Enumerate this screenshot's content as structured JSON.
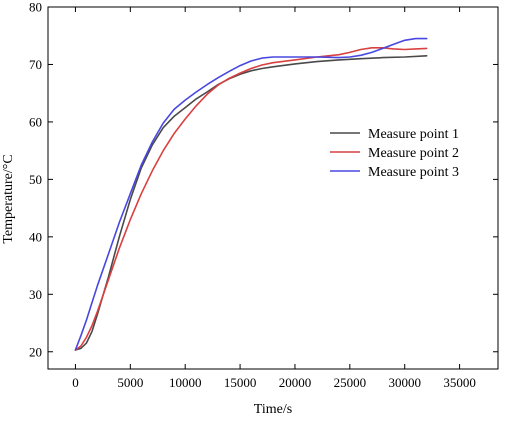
{
  "chart_data": {
    "type": "line",
    "title": "",
    "xlabel": "Time/s",
    "ylabel": "Temperature/°C",
    "xlim": [
      -2500,
      38500
    ],
    "ylim": [
      17,
      80
    ],
    "xticks": [
      0,
      5000,
      10000,
      15000,
      20000,
      25000,
      30000,
      35000
    ],
    "yticks": [
      20,
      30,
      40,
      50,
      60,
      70,
      80
    ],
    "grid": false,
    "legend_position": "right",
    "series": [
      {
        "name": "Measure point 1",
        "color": "#4a4a4a",
        "points": [
          [
            0,
            20.3
          ],
          [
            500,
            20.6
          ],
          [
            1000,
            21.5
          ],
          [
            1500,
            23.5
          ],
          [
            2000,
            26.5
          ],
          [
            3000,
            33.0
          ],
          [
            4000,
            40.0
          ],
          [
            5000,
            46.5
          ],
          [
            6000,
            52.0
          ],
          [
            7000,
            56.0
          ],
          [
            8000,
            59.0
          ],
          [
            9000,
            61.0
          ],
          [
            10000,
            62.5
          ],
          [
            11000,
            64.0
          ],
          [
            12000,
            65.2
          ],
          [
            13000,
            66.5
          ],
          [
            14000,
            67.5
          ],
          [
            15000,
            68.3
          ],
          [
            16000,
            68.9
          ],
          [
            17000,
            69.3
          ],
          [
            18000,
            69.6
          ],
          [
            20000,
            70.1
          ],
          [
            22000,
            70.5
          ],
          [
            24000,
            70.8
          ],
          [
            26000,
            71.0
          ],
          [
            28000,
            71.2
          ],
          [
            30000,
            71.3
          ],
          [
            32000,
            71.5
          ]
        ]
      },
      {
        "name": "Measure point 2",
        "color": "#d94040",
        "points": [
          [
            0,
            20.3
          ],
          [
            500,
            21.0
          ],
          [
            1000,
            22.5
          ],
          [
            1500,
            24.5
          ],
          [
            2000,
            27.0
          ],
          [
            3000,
            32.5
          ],
          [
            4000,
            38.0
          ],
          [
            5000,
            43.0
          ],
          [
            6000,
            47.5
          ],
          [
            7000,
            51.5
          ],
          [
            8000,
            55.0
          ],
          [
            9000,
            58.0
          ],
          [
            10000,
            60.5
          ],
          [
            11000,
            62.8
          ],
          [
            12000,
            64.8
          ],
          [
            13000,
            66.4
          ],
          [
            14000,
            67.6
          ],
          [
            15000,
            68.5
          ],
          [
            16000,
            69.3
          ],
          [
            17000,
            69.9
          ],
          [
            18000,
            70.3
          ],
          [
            20000,
            70.8
          ],
          [
            22000,
            71.3
          ],
          [
            24000,
            71.7
          ],
          [
            25000,
            72.1
          ],
          [
            26000,
            72.6
          ],
          [
            27000,
            72.9
          ],
          [
            28000,
            72.9
          ],
          [
            29000,
            72.7
          ],
          [
            30000,
            72.6
          ],
          [
            31000,
            72.7
          ],
          [
            32000,
            72.8
          ]
        ]
      },
      {
        "name": "Measure point 3",
        "color": "#4848e0",
        "points": [
          [
            0,
            20.3
          ],
          [
            500,
            22.8
          ],
          [
            1000,
            25.5
          ],
          [
            1500,
            28.5
          ],
          [
            2000,
            31.5
          ],
          [
            3000,
            37.0
          ],
          [
            4000,
            42.5
          ],
          [
            5000,
            47.5
          ],
          [
            6000,
            52.5
          ],
          [
            7000,
            56.5
          ],
          [
            8000,
            59.8
          ],
          [
            9000,
            62.2
          ],
          [
            10000,
            63.8
          ],
          [
            11000,
            65.2
          ],
          [
            12000,
            66.5
          ],
          [
            13000,
            67.7
          ],
          [
            14000,
            68.8
          ],
          [
            15000,
            69.8
          ],
          [
            16000,
            70.6
          ],
          [
            17000,
            71.1
          ],
          [
            18000,
            71.3
          ],
          [
            20000,
            71.3
          ],
          [
            22000,
            71.3
          ],
          [
            24000,
            71.2
          ],
          [
            25000,
            71.3
          ],
          [
            26000,
            71.6
          ],
          [
            27000,
            72.1
          ],
          [
            28000,
            72.8
          ],
          [
            29000,
            73.5
          ],
          [
            30000,
            74.2
          ],
          [
            31000,
            74.5
          ],
          [
            32000,
            74.5
          ]
        ]
      }
    ]
  }
}
